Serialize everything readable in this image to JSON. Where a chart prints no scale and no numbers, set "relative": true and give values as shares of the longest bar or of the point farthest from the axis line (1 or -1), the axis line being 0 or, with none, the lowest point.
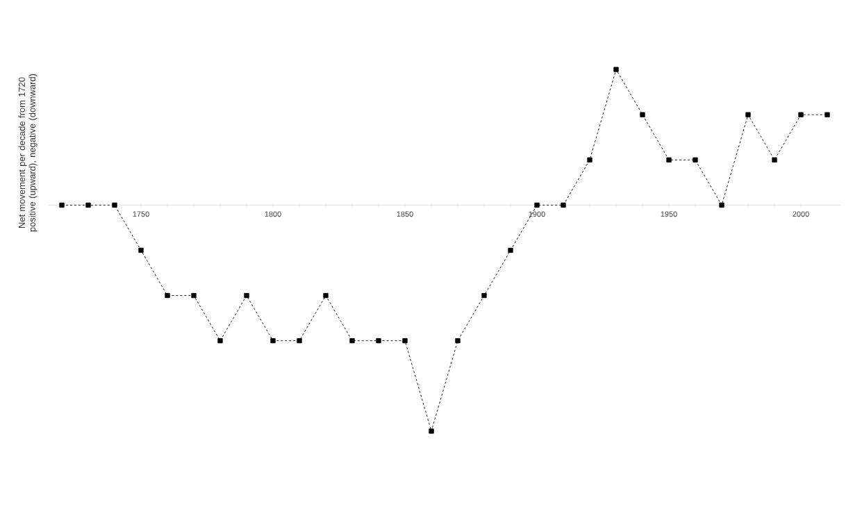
{
  "chart_data": {
    "type": "line",
    "ylabel": "Net movement per decade from  1720 positive (upward), negative (downward)",
    "relative": true,
    "x": [
      1720,
      1730,
      1740,
      1750,
      1760,
      1770,
      1780,
      1790,
      1800,
      1810,
      1820,
      1830,
      1840,
      1850,
      1860,
      1870,
      1880,
      1890,
      1900,
      1910,
      1920,
      1930,
      1940,
      1950,
      1960,
      1970,
      1980,
      1990,
      2000,
      2010
    ],
    "series": [
      {
        "color": "#000000",
        "values": [
          0,
          0,
          0,
          -0.2,
          -0.4,
          -0.4,
          -0.6,
          -0.4,
          -0.6,
          -0.6,
          -0.4,
          -0.6,
          -0.6,
          -0.6,
          -1,
          -0.6,
          -0.4,
          -0.2,
          0,
          0,
          0.2,
          0.6,
          0.4,
          0.2,
          0.2,
          0,
          0.4,
          0.2,
          0.4,
          0.4
        ]
      }
    ],
    "xlim": [
      1715,
      2015
    ],
    "xticks": [
      1750,
      1800,
      1850,
      1900,
      1950,
      2000
    ],
    "marker": "square",
    "line_style": "dashed",
    "grid": false
  }
}
